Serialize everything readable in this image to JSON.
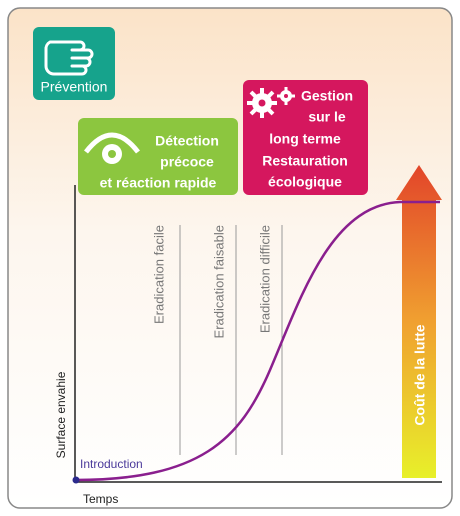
{
  "prevention": {
    "label": "Prévention"
  },
  "detection": {
    "lines": [
      "Détection",
      "précoce",
      "et réaction rapide"
    ]
  },
  "management": {
    "lines": [
      "Gestion",
      "sur le",
      "long terme",
      "Restauration",
      "écologique"
    ]
  },
  "axes": {
    "y_label": "Surface envahie",
    "x_label": "Temps"
  },
  "eradication": [
    "Eradication facile",
    "Eradication faisable",
    "Eradication difficile"
  ],
  "introduction": "Introduction",
  "cost": "Coût de la lutte"
}
